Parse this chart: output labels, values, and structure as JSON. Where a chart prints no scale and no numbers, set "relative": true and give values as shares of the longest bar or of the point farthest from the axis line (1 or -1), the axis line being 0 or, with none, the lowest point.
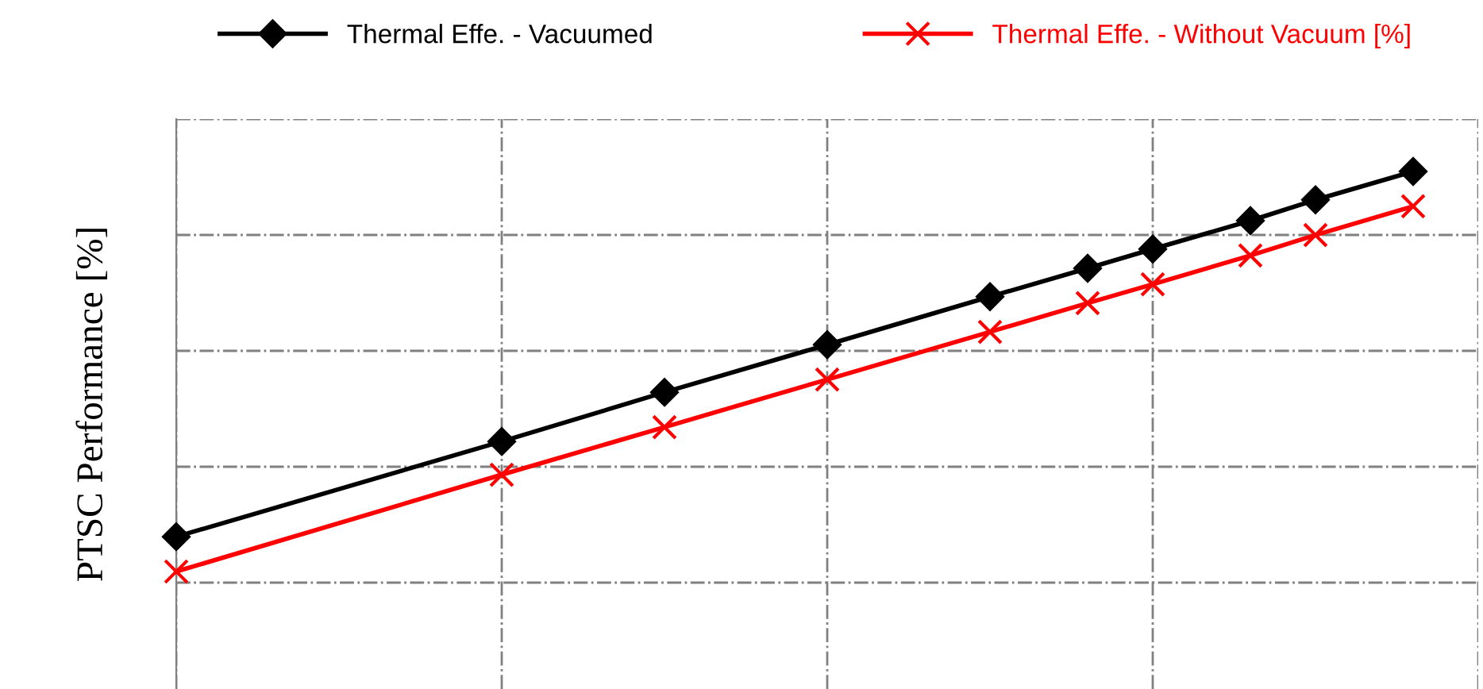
{
  "chart_data": {
    "type": "line",
    "relative": true,
    "ylabel": "PTSC Performance [%]",
    "categories": [
      null,
      null,
      null,
      null,
      null,
      null,
      null,
      null,
      null,
      null,
      null,
      null,
      null,
      null,
      null,
      null,
      null,
      null,
      null,
      null,
      null,
      null,
      null,
      null,
      null,
      null,
      null,
      null,
      null,
      null,
      null,
      null,
      null,
      null,
      null,
      null,
      null,
      null,
      null,
      null,
      null
    ],
    "series": [
      {
        "name": "Thermal Effe. - Vacuumed",
        "color": "#000000",
        "marker": "diamond",
        "values": [
          0.087,
          null,
          null,
          null,
          null,
          null,
          null,
          null,
          null,
          null,
          0.325,
          null,
          null,
          null,
          null,
          0.448,
          null,
          null,
          null,
          null,
          0.567,
          null,
          null,
          null,
          null,
          0.687,
          null,
          null,
          0.758,
          null,
          0.806,
          null,
          null,
          0.877,
          null,
          0.929,
          null,
          null,
          1.0,
          null,
          null
        ]
      },
      {
        "name": "Thermal Effe. - Without Vacuum [%]",
        "color": "#ff0000",
        "marker": "cross",
        "values": [
          0.0,
          null,
          null,
          null,
          null,
          null,
          null,
          null,
          null,
          null,
          0.242,
          null,
          null,
          null,
          null,
          0.361,
          null,
          null,
          null,
          null,
          0.48,
          null,
          null,
          null,
          null,
          0.599,
          null,
          null,
          0.671,
          null,
          0.718,
          null,
          null,
          0.79,
          null,
          0.841,
          null,
          null,
          0.913,
          null,
          null
        ]
      }
    ],
    "grid": true,
    "legend": "top",
    "line_style": "solid"
  }
}
